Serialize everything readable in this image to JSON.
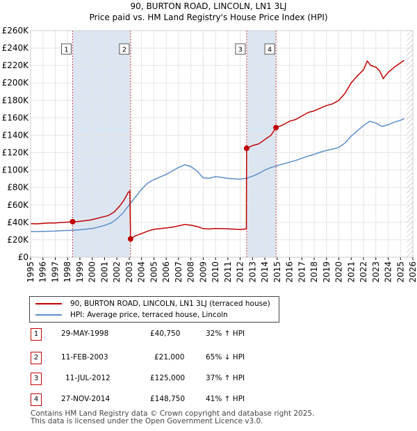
{
  "header": {
    "title": "90, BURTON ROAD, LINCOLN, LN1 3LJ",
    "subtitle": "Price paid vs. HM Land Registry's House Price Index (HPI)"
  },
  "chart_data": {
    "type": "line",
    "ylim": [
      0,
      260000
    ],
    "xlim": [
      1995,
      2026
    ],
    "y_ticks": [
      0,
      20000,
      40000,
      60000,
      80000,
      100000,
      120000,
      140000,
      160000,
      180000,
      200000,
      220000,
      240000,
      260000
    ],
    "y_tick_labels": [
      "£0",
      "£20K",
      "£40K",
      "£60K",
      "£80K",
      "£100K",
      "£120K",
      "£140K",
      "£160K",
      "£180K",
      "£200K",
      "£220K",
      "£240K",
      "£260K"
    ],
    "x_ticks": [
      "1995",
      "1996",
      "1997",
      "1998",
      "1999",
      "2000",
      "2001",
      "2002",
      "2003",
      "2004",
      "2005",
      "2006",
      "2007",
      "2008",
      "2009",
      "2010",
      "2011",
      "2012",
      "2013",
      "2014",
      "2015",
      "2016",
      "2017",
      "2018",
      "2019",
      "2020",
      "2021",
      "2022",
      "2023",
      "2024",
      "2025",
      "2026"
    ],
    "colors": {
      "property": "#c00000",
      "hpi": "#5b8ec8",
      "shade": "#dce6f3",
      "vline": "#d04040"
    },
    "series": [
      {
        "name": "90, BURTON ROAD, LINCOLN, LN1 3LJ (terraced house)",
        "points": [
          [
            1995.0,
            38500
          ],
          [
            1995.5,
            38300
          ],
          [
            1996.0,
            38800
          ],
          [
            1996.5,
            39200
          ],
          [
            1997.0,
            39300
          ],
          [
            1997.5,
            39900
          ],
          [
            1998.0,
            40300
          ],
          [
            1998.41,
            40750
          ],
          [
            1998.8,
            40900
          ],
          [
            1999.3,
            41700
          ],
          [
            1999.8,
            42600
          ],
          [
            2000.3,
            44200
          ],
          [
            2000.8,
            46000
          ],
          [
            2001.3,
            47800
          ],
          [
            2001.8,
            52000
          ],
          [
            2002.3,
            60000
          ],
          [
            2002.6,
            66000
          ],
          [
            2002.9,
            74000
          ],
          [
            2003.05,
            76000
          ],
          [
            2003.11,
            21000
          ],
          [
            2003.5,
            24500
          ],
          [
            2004.0,
            27000
          ],
          [
            2004.5,
            30000
          ],
          [
            2005.0,
            32000
          ],
          [
            2005.5,
            32800
          ],
          [
            2006.0,
            33600
          ],
          [
            2006.5,
            34500
          ],
          [
            2007.0,
            36000
          ],
          [
            2007.5,
            37500
          ],
          [
            2008.0,
            36800
          ],
          [
            2008.5,
            35200
          ],
          [
            2009.0,
            32800
          ],
          [
            2009.5,
            32400
          ],
          [
            2010.0,
            33000
          ],
          [
            2010.5,
            32800
          ],
          [
            2011.0,
            32600
          ],
          [
            2011.5,
            32200
          ],
          [
            2012.0,
            31800
          ],
          [
            2012.5,
            32500
          ],
          [
            2012.52,
            125000
          ],
          [
            2013.0,
            128000
          ],
          [
            2013.5,
            130000
          ],
          [
            2014.0,
            135000
          ],
          [
            2014.5,
            140000
          ],
          [
            2014.9,
            148750
          ],
          [
            2015.5,
            152000
          ],
          [
            2016.0,
            156000
          ],
          [
            2016.5,
            158000
          ],
          [
            2017.0,
            162000
          ],
          [
            2017.5,
            166000
          ],
          [
            2018.0,
            168000
          ],
          [
            2018.5,
            171000
          ],
          [
            2019.0,
            174000
          ],
          [
            2019.5,
            176000
          ],
          [
            2020.0,
            180000
          ],
          [
            2020.5,
            188000
          ],
          [
            2021.0,
            200000
          ],
          [
            2021.5,
            208000
          ],
          [
            2022.0,
            215000
          ],
          [
            2022.3,
            225000
          ],
          [
            2022.6,
            220000
          ],
          [
            2023.0,
            218000
          ],
          [
            2023.3,
            214000
          ],
          [
            2023.6,
            205000
          ],
          [
            2024.0,
            212000
          ],
          [
            2024.5,
            218000
          ],
          [
            2025.0,
            223000
          ],
          [
            2025.3,
            226000
          ]
        ]
      },
      {
        "name": "HPI: Average price, terraced house, Lincoln",
        "points": [
          [
            1995.0,
            29500
          ],
          [
            1995.5,
            29300
          ],
          [
            1996.0,
            29600
          ],
          [
            1996.5,
            29800
          ],
          [
            1997.0,
            30000
          ],
          [
            1997.5,
            30400
          ],
          [
            1998.0,
            30700
          ],
          [
            1998.5,
            31000
          ],
          [
            1999.0,
            31500
          ],
          [
            1999.5,
            32200
          ],
          [
            2000.0,
            33000
          ],
          [
            2000.5,
            34500
          ],
          [
            2001.0,
            36500
          ],
          [
            2001.5,
            39000
          ],
          [
            2002.0,
            44000
          ],
          [
            2002.5,
            51000
          ],
          [
            2003.0,
            60000
          ],
          [
            2003.5,
            69000
          ],
          [
            2004.0,
            78000
          ],
          [
            2004.5,
            85000
          ],
          [
            2005.0,
            89000
          ],
          [
            2005.5,
            92000
          ],
          [
            2006.0,
            95000
          ],
          [
            2006.5,
            99000
          ],
          [
            2007.0,
            103000
          ],
          [
            2007.5,
            106000
          ],
          [
            2008.0,
            104000
          ],
          [
            2008.5,
            99000
          ],
          [
            2009.0,
            91000
          ],
          [
            2009.5,
            90500
          ],
          [
            2010.0,
            92500
          ],
          [
            2010.5,
            91500
          ],
          [
            2011.0,
            90500
          ],
          [
            2011.5,
            90000
          ],
          [
            2012.0,
            89500
          ],
          [
            2012.5,
            90500
          ],
          [
            2013.0,
            93000
          ],
          [
            2013.5,
            96000
          ],
          [
            2014.0,
            100000
          ],
          [
            2014.5,
            103000
          ],
          [
            2015.0,
            105000
          ],
          [
            2015.5,
            107000
          ],
          [
            2016.0,
            109000
          ],
          [
            2016.5,
            111000
          ],
          [
            2017.0,
            113500
          ],
          [
            2017.5,
            116000
          ],
          [
            2018.0,
            118000
          ],
          [
            2018.5,
            120500
          ],
          [
            2019.0,
            122500
          ],
          [
            2019.5,
            124000
          ],
          [
            2020.0,
            126000
          ],
          [
            2020.5,
            131000
          ],
          [
            2021.0,
            139000
          ],
          [
            2021.5,
            145000
          ],
          [
            2022.0,
            151000
          ],
          [
            2022.5,
            156000
          ],
          [
            2023.0,
            154000
          ],
          [
            2023.5,
            150000
          ],
          [
            2024.0,
            152000
          ],
          [
            2024.5,
            155000
          ],
          [
            2025.0,
            157000
          ],
          [
            2025.3,
            159000
          ]
        ]
      }
    ],
    "sale_markers": [
      {
        "label": "1",
        "x": 1998.41,
        "y": 40750
      },
      {
        "label": "2",
        "x": 2003.11,
        "y": 21000
      },
      {
        "label": "3",
        "x": 2012.52,
        "y": 125000
      },
      {
        "label": "4",
        "x": 2014.9,
        "y": 148750
      }
    ],
    "shaded_ranges": [
      [
        1998.41,
        2003.11
      ],
      [
        2012.52,
        2014.9
      ]
    ],
    "hatched_from": 2025.5
  },
  "legend": {
    "property": "90, BURTON ROAD, LINCOLN, LN1 3LJ (terraced house)",
    "hpi": "HPI: Average price, terraced house, Lincoln"
  },
  "sales": [
    {
      "num": "1",
      "date": "29-MAY-1998",
      "price": "£40,750",
      "hpi": "32% ↑ HPI"
    },
    {
      "num": "2",
      "date": "11-FEB-2003",
      "price": "£21,000",
      "hpi": "65% ↓ HPI"
    },
    {
      "num": "3",
      "date": "11-JUL-2012",
      "price": "£125,000",
      "hpi": "37% ↑ HPI"
    },
    {
      "num": "4",
      "date": "27-NOV-2014",
      "price": "£148,750",
      "hpi": "41% ↑ HPI"
    }
  ],
  "footer": {
    "line1": "Contains HM Land Registry data © Crown copyright and database right 2025.",
    "line2": "This data is licensed under the Open Government Licence v3.0."
  }
}
